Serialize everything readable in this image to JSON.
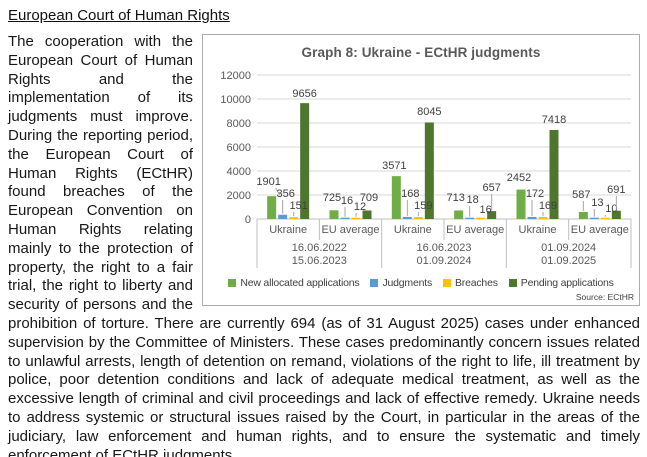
{
  "page": {
    "heading": "European Court of Human Rights",
    "body": "The cooperation with the European Court of Human Rights and the implementation of its judgments must improve. During the reporting period, the European Court of Human Rights (ECtHR) found breaches of the European Convention on Human Rights relating mainly to the protection of property, the right to a fair trial, the right to liberty and security of persons and the prohibition of torture. There are currently 694 (as of 31 August 2025) cases under enhanced supervision by the Committee of Ministers. These cases predominantly concern issues related to unlawful arrests, length of detention on remand, violations of the right to life, ill treatment by police, poor detention conditions and lack of adequate medical treatment, as well as the excessive length of criminal and civil proceedings and lack of effective remedy. Ukraine needs to address systemic or structural issues raised by the Court, in particular in the areas of the judiciary, law enforcement and human rights, and to ensure the systematic and timely enforcement of ECtHR judgments."
  },
  "chart_data": {
    "type": "bar",
    "title": "Graph 8: Ukraine - ECtHR judgments",
    "source": "Source: ECtHR",
    "ylim": [
      0,
      12000
    ],
    "ytick_step": 2000,
    "grid": true,
    "legend_position": "bottom",
    "categories": [
      "Ukraine",
      "EU average",
      "Ukraine",
      "EU average",
      "Ukraine",
      "EU average"
    ],
    "period_labels": [
      [
        "16.06.2022",
        "15.06.2023"
      ],
      [
        "16.06.2023",
        "01.09.2024"
      ],
      [
        "01.09.2024",
        "01.09.2025"
      ]
    ],
    "series": [
      {
        "name": "New allocated applications",
        "color": "#70AD47",
        "values": [
          1901,
          725,
          3571,
          713,
          2452,
          587
        ]
      },
      {
        "name": "Judgments",
        "color": "#5B9BD5",
        "values": [
          356,
          16,
          168,
          18,
          172,
          13
        ]
      },
      {
        "name": "Breaches",
        "color": "#FFC000",
        "values": [
          151,
          12,
          159,
          16,
          169,
          10
        ]
      },
      {
        "name": "Pending applications",
        "color": "#4E772D",
        "values": [
          9656,
          709,
          8045,
          657,
          7418,
          691
        ]
      }
    ]
  }
}
